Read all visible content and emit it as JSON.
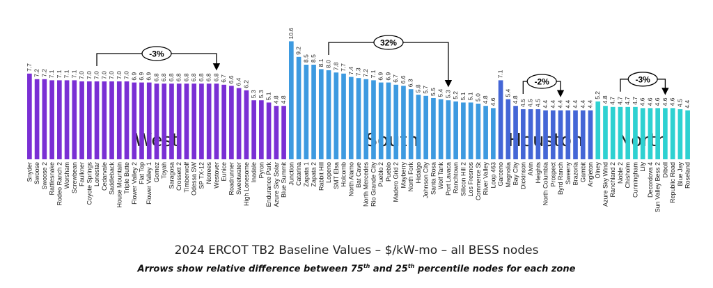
{
  "chart_data": {
    "type": "bar",
    "title": "2024 ERCOT TB2 Baseline Values – $/kW-mo – all BESS nodes",
    "subtitle": {
      "before": "Arrows show relative difference between 75",
      "sup1": "th",
      "middle": " and 25",
      "sup2": "th",
      "after": " percentile nodes for each zone"
    },
    "ylim": [
      0,
      11
    ],
    "zones": [
      {
        "name": "West",
        "color": "#7a2fd4",
        "arrow_label": "-3%",
        "arrow_from": "Lonestar",
        "arrow_to": "Westover",
        "categories": [
          "Snyder",
          "Swoose",
          "Swoose 2",
          "Rattlesnake",
          "Rodeo Ranch 2",
          "Worsham",
          "Screwbean",
          "Faulkner",
          "Coyote Springs",
          "Lonestar",
          "Cedarvale",
          "Saddleback",
          "House Mountain",
          "Triple Butte",
          "Flower Valley 2",
          "Flat Top",
          "Flower Valley 1",
          "Gomez",
          "Toyah",
          "Saragosa",
          "Crossett 2",
          "Timberwolf",
          "Odessa SW",
          "SP TX-12",
          "Notrees",
          "Westover",
          "Eunice",
          "Roadrunner",
          "Sweetwater",
          "High Lonesome",
          "Inadale",
          "Pyron",
          "Endurance Park",
          "Azure Sky Solar",
          "Blue Summit"
        ],
        "values": [
          7.7,
          7.2,
          7.2,
          7.1,
          7.1,
          7.1,
          7.1,
          7.0,
          7.0,
          7.0,
          7.0,
          7.0,
          7.0,
          7.0,
          6.9,
          6.9,
          6.9,
          6.8,
          6.8,
          6.8,
          6.8,
          6.8,
          6.8,
          6.8,
          6.8,
          6.8,
          6.7,
          6.6,
          6.4,
          6.2,
          5.3,
          5.3,
          5.1,
          4.8,
          4.8
        ]
      },
      {
        "name": "South",
        "color": "#3d9ae0",
        "arrow_label": "32%",
        "arrow_from": "Lopeno",
        "arrow_to": "Port Lavaca",
        "categories": [
          "Junction",
          "Catarina",
          "Zapata 1",
          "Zapata 2",
          "Rabbit Hill",
          "Lopeno",
          "SMT Elsa",
          "Holcomb",
          "North Alamo",
          "Bat Cave",
          "North Mercedes",
          "Rio Grande City",
          "Pueblo 2",
          "Pueblo",
          "Madero Grid 2",
          "Mayberry",
          "North Fork",
          "Hidalgo",
          "Johnson City",
          "Santa Rosa",
          "Wolf Tank",
          "Port Lavaca",
          "Ranchtown",
          "Silicon Hill 2",
          "Los Fresnos",
          "Commerce St",
          "River Valley",
          "Loop 463"
        ],
        "values": [
          10.6,
          9.2,
          8.5,
          8.5,
          8.1,
          8.0,
          7.8,
          7.7,
          7.4,
          7.3,
          7.2,
          7.1,
          6.9,
          6.9,
          6.7,
          6.6,
          6.3,
          5.8,
          5.7,
          5.5,
          5.4,
          5.3,
          5.2,
          5.1,
          5.1,
          5.0,
          4.8,
          4.6
        ]
      },
      {
        "name": "Houston",
        "color": "#4466d6",
        "arrow_label": "-2%",
        "arrow_from": "Dickinson",
        "arrow_to": "Byrd Ranch",
        "categories": [
          "Garceno",
          "Magnolia",
          "Bay City",
          "Dickinson",
          "Alvin",
          "Heights",
          "North Columbia",
          "Prospect",
          "Byrd Ranch",
          "Sweeny",
          "Brazoria",
          "Gambit",
          "Angleton"
        ],
        "values": [
          7.1,
          5.4,
          4.8,
          4.5,
          4.5,
          4.5,
          4.4,
          4.4,
          4.4,
          4.4,
          4.4,
          4.4,
          4.4
        ]
      },
      {
        "name": "North",
        "color": "#2ed1d1",
        "arrow_label": "-3%",
        "arrow_from": "Noble 2",
        "arrow_to": "Diboll",
        "categories": [
          "Olney",
          "Azure Sky Wind",
          "Ranchland 2",
          "Noble 2",
          "Chisholm",
          "Cunningham",
          "Lily",
          "Decordova 4",
          "Sun Valley Bess 2",
          "Diboll",
          "Republic Road",
          "Blue Jay",
          "Roseland"
        ],
        "values": [
          5.2,
          4.8,
          4.7,
          4.7,
          4.7,
          4.7,
          4.6,
          4.6,
          4.6,
          4.6,
          4.6,
          4.5,
          4.4
        ]
      }
    ]
  }
}
